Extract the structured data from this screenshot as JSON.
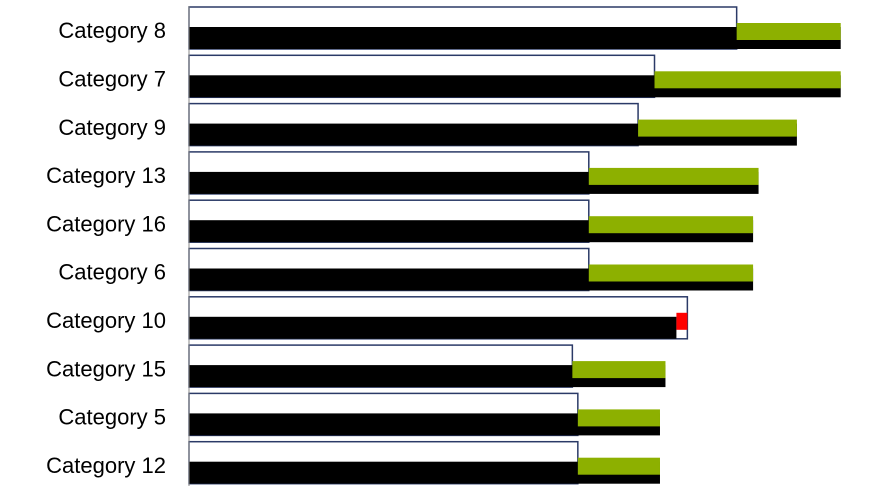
{
  "chart_data": {
    "type": "bar",
    "orientation": "horizontal",
    "categories": [
      "Category 8",
      "Category 7",
      "Category 9",
      "Category 13",
      "Category 16",
      "Category 6",
      "Category 10",
      "Category 15",
      "Category 5",
      "Category 12"
    ],
    "series": [
      {
        "values": [
          100,
          85,
          82,
          73,
          73,
          73,
          91,
          70,
          71,
          71
        ]
      },
      {
        "values": [
          119,
          119,
          111,
          104,
          103,
          103,
          89,
          87,
          86,
          86
        ]
      }
    ],
    "colors": {
      "baseline_outline": "#2b3a67",
      "baseline_fill": "#ffffff",
      "current_bar": "#000000",
      "increase": "#8db000",
      "decrease": "#ff0000"
    },
    "xlim": [
      0,
      128
    ],
    "grid": false,
    "legend": "none"
  }
}
